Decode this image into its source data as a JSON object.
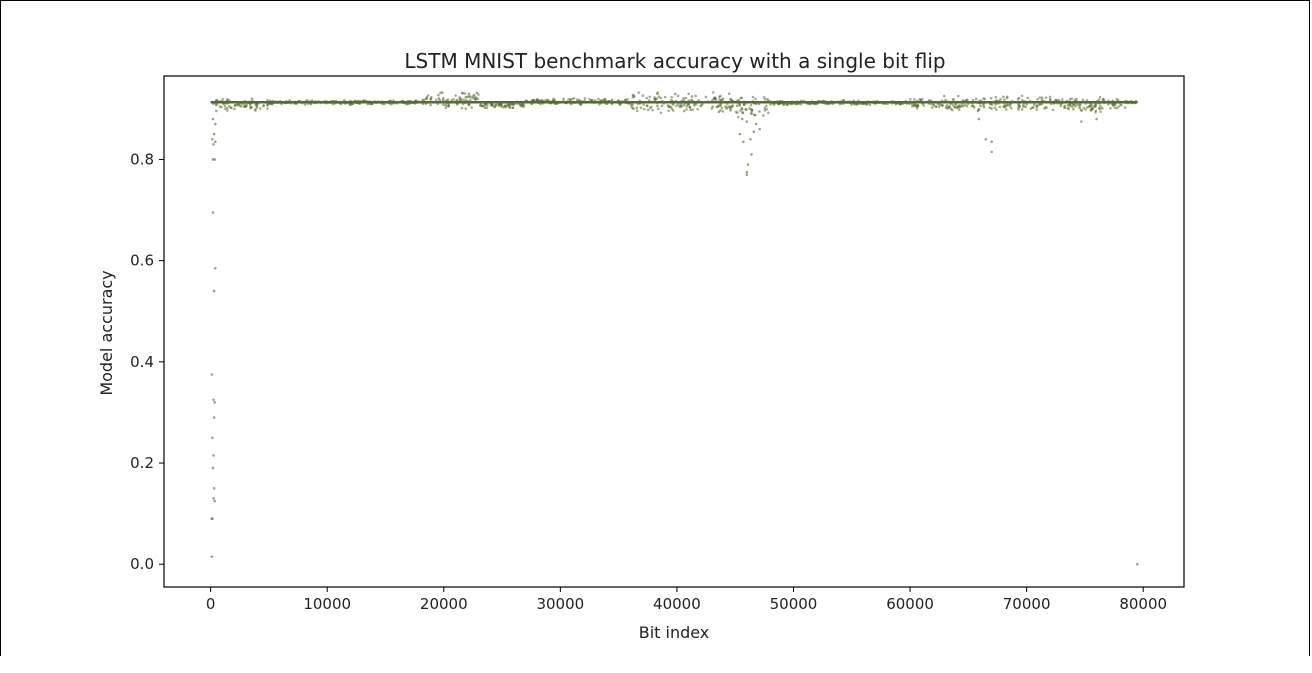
{
  "chart_data": {
    "type": "scatter",
    "title": "LSTM MNIST benchmark accuracy with a single bit flip",
    "xlabel": "Bit index",
    "ylabel": "Model accuracy",
    "xlim": [
      -4000,
      83500
    ],
    "ylim": [
      -0.045,
      0.965
    ],
    "xticks": [
      0,
      10000,
      20000,
      30000,
      40000,
      50000,
      60000,
      70000,
      80000
    ],
    "xtick_labels": [
      "0",
      "10000",
      "20000",
      "30000",
      "40000",
      "50000",
      "60000",
      "70000",
      "80000"
    ],
    "yticks": [
      0.0,
      0.2,
      0.4,
      0.6,
      0.8
    ],
    "ytick_labels": [
      "0.0",
      "0.2",
      "0.4",
      "0.6",
      "0.8"
    ],
    "grid": false,
    "marker_color": "#556b2f",
    "baseline_accuracy": 0.913,
    "x_max_bit_index": 79500,
    "series": [
      {
        "name": "baseline band",
        "segments": [
          {
            "x": [
              0,
              5000
            ],
            "y_center": 0.908,
            "spread": 0.012
          },
          {
            "x": [
              5000,
              18000
            ],
            "y_center": 0.913,
            "spread": 0.004
          },
          {
            "x": [
              18000,
              23000
            ],
            "y_center": 0.918,
            "spread": 0.016
          },
          {
            "x": [
              23000,
              27000
            ],
            "y_center": 0.908,
            "spread": 0.006
          },
          {
            "x": [
              27000,
              36000
            ],
            "y_center": 0.914,
            "spread": 0.006
          },
          {
            "x": [
              36000,
              45000
            ],
            "y_center": 0.91,
            "spread": 0.022
          },
          {
            "x": [
              45000,
              48000
            ],
            "y_center": 0.905,
            "spread": 0.025
          },
          {
            "x": [
              48000,
              60000
            ],
            "y_center": 0.912,
            "spread": 0.004
          },
          {
            "x": [
              60000,
              78500
            ],
            "y_center": 0.91,
            "spread": 0.016
          },
          {
            "x": [
              78500,
              79500
            ],
            "y_center": 0.913,
            "spread": 0.002
          }
        ]
      },
      {
        "name": "outliers",
        "points": [
          {
            "x": 100,
            "y": 0.015
          },
          {
            "x": 100,
            "y": 0.09
          },
          {
            "x": 150,
            "y": 0.09
          },
          {
            "x": 250,
            "y": 0.13
          },
          {
            "x": 350,
            "y": 0.125
          },
          {
            "x": 300,
            "y": 0.15
          },
          {
            "x": 200,
            "y": 0.19
          },
          {
            "x": 250,
            "y": 0.215
          },
          {
            "x": 150,
            "y": 0.25
          },
          {
            "x": 300,
            "y": 0.29
          },
          {
            "x": 350,
            "y": 0.32
          },
          {
            "x": 250,
            "y": 0.325
          },
          {
            "x": 100,
            "y": 0.375
          },
          {
            "x": 300,
            "y": 0.54
          },
          {
            "x": 400,
            "y": 0.585
          },
          {
            "x": 200,
            "y": 0.695
          },
          {
            "x": 200,
            "y": 0.8
          },
          {
            "x": 350,
            "y": 0.8
          },
          {
            "x": 250,
            "y": 0.83
          },
          {
            "x": 400,
            "y": 0.835
          },
          {
            "x": 150,
            "y": 0.84
          },
          {
            "x": 300,
            "y": 0.85
          },
          {
            "x": 400,
            "y": 0.87
          },
          {
            "x": 200,
            "y": 0.88
          },
          {
            "x": 46000,
            "y": 0.77
          },
          {
            "x": 46000,
            "y": 0.775
          },
          {
            "x": 46100,
            "y": 0.79
          },
          {
            "x": 46400,
            "y": 0.81
          },
          {
            "x": 45700,
            "y": 0.835
          },
          {
            "x": 46300,
            "y": 0.84
          },
          {
            "x": 46600,
            "y": 0.855
          },
          {
            "x": 45400,
            "y": 0.85
          },
          {
            "x": 47100,
            "y": 0.86
          },
          {
            "x": 46800,
            "y": 0.87
          },
          {
            "x": 46000,
            "y": 0.875
          },
          {
            "x": 45600,
            "y": 0.88
          },
          {
            "x": 66500,
            "y": 0.84
          },
          {
            "x": 67000,
            "y": 0.815
          },
          {
            "x": 67000,
            "y": 0.835
          },
          {
            "x": 65900,
            "y": 0.88
          },
          {
            "x": 74700,
            "y": 0.875
          },
          {
            "x": 76000,
            "y": 0.88
          },
          {
            "x": 79500,
            "y": 0.0
          }
        ]
      }
    ]
  }
}
